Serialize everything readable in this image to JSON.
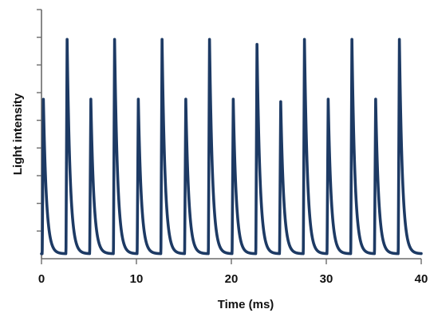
{
  "chart_data": {
    "type": "line",
    "xlabel": "Time (ms)",
    "ylabel": "Light intensity",
    "xlim": [
      0,
      40
    ],
    "ylim": [
      0,
      1.0
    ],
    "x_ticks": [
      0,
      10,
      20,
      30,
      40
    ],
    "y_minor_ticks": 9,
    "grid": false,
    "legend": "none",
    "line_color": "#1d3a64",
    "series": [
      {
        "peaks": [
          {
            "t": 0.2,
            "amplitude": 0.62
          },
          {
            "t": 2.7,
            "amplitude": 0.86
          },
          {
            "t": 5.2,
            "amplitude": 0.62
          },
          {
            "t": 7.7,
            "amplitude": 0.86
          },
          {
            "t": 10.2,
            "amplitude": 0.62
          },
          {
            "t": 12.7,
            "amplitude": 0.86
          },
          {
            "t": 15.2,
            "amplitude": 0.62
          },
          {
            "t": 17.7,
            "amplitude": 0.86
          },
          {
            "t": 20.2,
            "amplitude": 0.62
          },
          {
            "t": 22.7,
            "amplitude": 0.84
          },
          {
            "t": 25.2,
            "amplitude": 0.61
          },
          {
            "t": 27.7,
            "amplitude": 0.86
          },
          {
            "t": 30.2,
            "amplitude": 0.62
          },
          {
            "t": 32.7,
            "amplitude": 0.86
          },
          {
            "t": 35.2,
            "amplitude": 0.62
          },
          {
            "t": 37.7,
            "amplitude": 0.86
          }
        ],
        "baseline": 0.02
      }
    ]
  }
}
